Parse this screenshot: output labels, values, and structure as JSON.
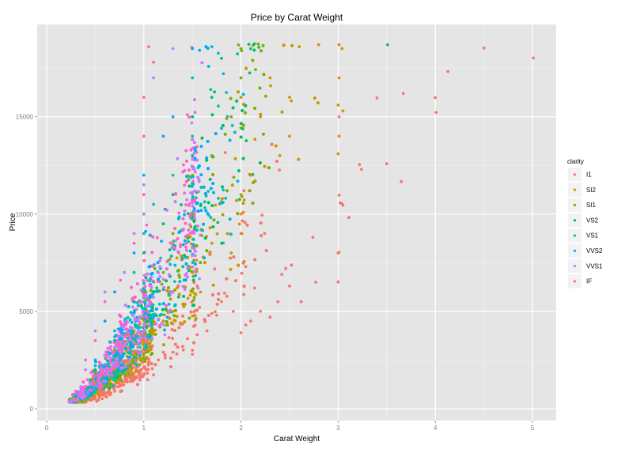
{
  "chart_data": {
    "type": "scatter",
    "title": "Price by Carat Weight",
    "xlabel": "Carat Weight",
    "ylabel": "Price",
    "xlim": [
      -0.1,
      5.25
    ],
    "ylim": [
      -500,
      19600
    ],
    "x_ticks": [
      0,
      1,
      2,
      3,
      4,
      5
    ],
    "y_ticks": [
      0,
      5000,
      10000,
      15000
    ],
    "x_tick_labels": [
      "0",
      "1",
      "2",
      "3",
      "4",
      "5"
    ],
    "y_tick_labels": [
      "0",
      "5000",
      "10000",
      "15000"
    ],
    "grid": true,
    "legend_position": "right",
    "legend": {
      "title": "clarity",
      "entries": [
        {
          "label": "I1",
          "color": "#F8766D"
        },
        {
          "label": "SI2",
          "color": "#CD9600"
        },
        {
          "label": "SI1",
          "color": "#7CAE00"
        },
        {
          "label": "VS2",
          "color": "#00BE67"
        },
        {
          "label": "VS1",
          "color": "#00BFC4"
        },
        {
          "label": "VVS2",
          "color": "#00A9FF"
        },
        {
          "label": "VVS1",
          "color": "#C77CFF"
        },
        {
          "label": "IF",
          "color": "#FF61CC"
        }
      ]
    },
    "series": [
      {
        "name": "I1",
        "color": "#F8766D",
        "points": [
          [
            5.01,
            18018
          ],
          [
            4.5,
            18531
          ],
          [
            4.13,
            17329
          ],
          [
            4.01,
            15223
          ],
          [
            4.0,
            15984
          ],
          [
            3.67,
            16193
          ],
          [
            3.65,
            11668
          ],
          [
            3.5,
            12587
          ],
          [
            3.4,
            15964
          ],
          [
            3.24,
            12300
          ],
          [
            3.22,
            12545
          ],
          [
            3.11,
            9823
          ],
          [
            3.05,
            10453
          ],
          [
            3.04,
            10537
          ],
          [
            3.02,
            10577
          ],
          [
            3.01,
            10970
          ],
          [
            3.01,
            8040
          ],
          [
            3.0,
            8000
          ],
          [
            3.0,
            6512
          ],
          [
            3.01,
            15000
          ],
          [
            2.74,
            8807
          ],
          [
            2.77,
            6500
          ],
          [
            2.5,
            6300
          ],
          [
            2.62,
            5500
          ],
          [
            2.52,
            7380
          ],
          [
            2.46,
            7200
          ],
          [
            2.42,
            6900
          ],
          [
            2.38,
            5500
          ],
          [
            2.3,
            4700
          ],
          [
            2.2,
            5000
          ],
          [
            2.14,
            6200
          ],
          [
            2.1,
            4500
          ],
          [
            2.05,
            4300
          ],
          [
            2.0,
            3900
          ],
          [
            2.01,
            9000
          ],
          [
            2.0,
            10000
          ],
          [
            2.03,
            11200
          ],
          [
            2.05,
            7300
          ],
          [
            1.92,
            5000
          ],
          [
            1.8,
            5500
          ],
          [
            1.75,
            4800
          ],
          [
            1.7,
            4900
          ],
          [
            1.65,
            4000
          ],
          [
            1.55,
            3800
          ],
          [
            1.5,
            3000
          ],
          [
            1.5,
            2800
          ],
          [
            1.45,
            3600
          ],
          [
            1.4,
            3200
          ],
          [
            1.3,
            2900
          ],
          [
            1.22,
            2600
          ],
          [
            1.2,
            2900
          ],
          [
            1.15,
            2500
          ],
          [
            1.08,
            2300
          ],
          [
            1.05,
            3100
          ],
          [
            1.02,
            2000
          ],
          [
            1.0,
            1800
          ],
          [
            0.97,
            1700
          ],
          [
            0.92,
            2400
          ],
          [
            0.9,
            1600
          ],
          [
            0.86,
            1400
          ],
          [
            0.8,
            1400
          ],
          [
            0.75,
            1200
          ],
          [
            0.7,
            900
          ],
          [
            0.6,
            800
          ],
          [
            0.55,
            1000
          ]
        ]
      },
      {
        "name": "SI2",
        "color": "#CD9600",
        "points": [
          [
            3.01,
            18700
          ],
          [
            3.04,
            18500
          ],
          [
            3.01,
            17000
          ],
          [
            3.0,
            15600
          ],
          [
            3.05,
            15300
          ],
          [
            3.01,
            14000
          ],
          [
            3.0,
            13100
          ],
          [
            2.8,
            18700
          ],
          [
            2.6,
            18600
          ],
          [
            2.5,
            16000
          ],
          [
            2.5,
            14000
          ],
          [
            2.4,
            13000
          ],
          [
            2.3,
            17000
          ],
          [
            2.2,
            15000
          ],
          [
            2.1,
            12000
          ],
          [
            2.0,
            16000
          ],
          [
            2.0,
            11000
          ],
          [
            2.0,
            9000
          ],
          [
            1.9,
            8000
          ],
          [
            1.7,
            8500
          ],
          [
            1.5,
            7000
          ],
          [
            1.5,
            6000
          ],
          [
            1.3,
            5000
          ],
          [
            1.2,
            4500
          ],
          [
            1.1,
            4000
          ],
          [
            1.0,
            3500
          ],
          [
            0.9,
            2800
          ],
          [
            0.8,
            2400
          ],
          [
            0.7,
            2000
          ],
          [
            0.5,
            1300
          ],
          [
            0.3,
            700
          ],
          [
            0.25,
            500
          ]
        ]
      },
      {
        "name": "SI1",
        "color": "#7CAE00",
        "points": [
          [
            2.0,
            18500
          ],
          [
            2.0,
            17000
          ],
          [
            1.9,
            15000
          ],
          [
            1.7,
            13000
          ],
          [
            1.5,
            12000
          ],
          [
            1.5,
            10000
          ],
          [
            1.3,
            9000
          ],
          [
            1.2,
            7000
          ],
          [
            1.0,
            6000
          ],
          [
            0.9,
            4000
          ],
          [
            0.7,
            3000
          ],
          [
            0.5,
            1800
          ],
          [
            0.3,
            600
          ]
        ]
      },
      {
        "name": "VS2",
        "color": "#00BE67",
        "points": [
          [
            3.51,
            18701
          ],
          [
            2.1,
            18500
          ],
          [
            1.8,
            18000
          ],
          [
            1.7,
            16000
          ],
          [
            1.5,
            15000
          ],
          [
            1.5,
            13000
          ],
          [
            1.3,
            11000
          ],
          [
            1.2,
            9500
          ],
          [
            1.0,
            8000
          ],
          [
            0.9,
            5500
          ],
          [
            0.7,
            3500
          ],
          [
            0.5,
            2000
          ],
          [
            0.3,
            650
          ]
        ]
      },
      {
        "name": "VS1",
        "color": "#00BFC4",
        "points": [
          [
            1.7,
            18600
          ],
          [
            1.5,
            17000
          ],
          [
            1.5,
            14000
          ],
          [
            1.3,
            12000
          ],
          [
            1.1,
            10500
          ],
          [
            1.0,
            9000
          ],
          [
            0.9,
            7000
          ],
          [
            0.7,
            4000
          ],
          [
            0.5,
            2200
          ],
          [
            0.3,
            700
          ]
        ]
      },
      {
        "name": "VVS2",
        "color": "#00A9FF",
        "points": [
          [
            1.5,
            18500
          ],
          [
            1.3,
            15000
          ],
          [
            1.2,
            14000
          ],
          [
            1.0,
            12000
          ],
          [
            1.0,
            10000
          ],
          [
            0.9,
            8000
          ],
          [
            0.7,
            6000
          ],
          [
            0.6,
            4500
          ],
          [
            0.5,
            2500
          ],
          [
            0.3,
            750
          ]
        ]
      },
      {
        "name": "VVS1",
        "color": "#C77CFF",
        "points": [
          [
            1.3,
            18500
          ],
          [
            1.1,
            17000
          ],
          [
            1.0,
            11500
          ],
          [
            1.0,
            10000
          ],
          [
            0.9,
            9000
          ],
          [
            0.8,
            7000
          ],
          [
            0.6,
            6000
          ],
          [
            0.5,
            4000
          ],
          [
            0.4,
            2000
          ],
          [
            0.3,
            800
          ]
        ]
      },
      {
        "name": "IF",
        "color": "#FF61CC",
        "points": [
          [
            1.05,
            18600
          ],
          [
            1.1,
            17800
          ],
          [
            1.0,
            16000
          ],
          [
            1.0,
            14000
          ],
          [
            1.0,
            11000
          ],
          [
            0.9,
            8500
          ],
          [
            0.76,
            6600
          ],
          [
            0.6,
            5500
          ],
          [
            0.5,
            3500
          ],
          [
            0.4,
            2500
          ],
          [
            0.3,
            900
          ]
        ]
      }
    ]
  }
}
